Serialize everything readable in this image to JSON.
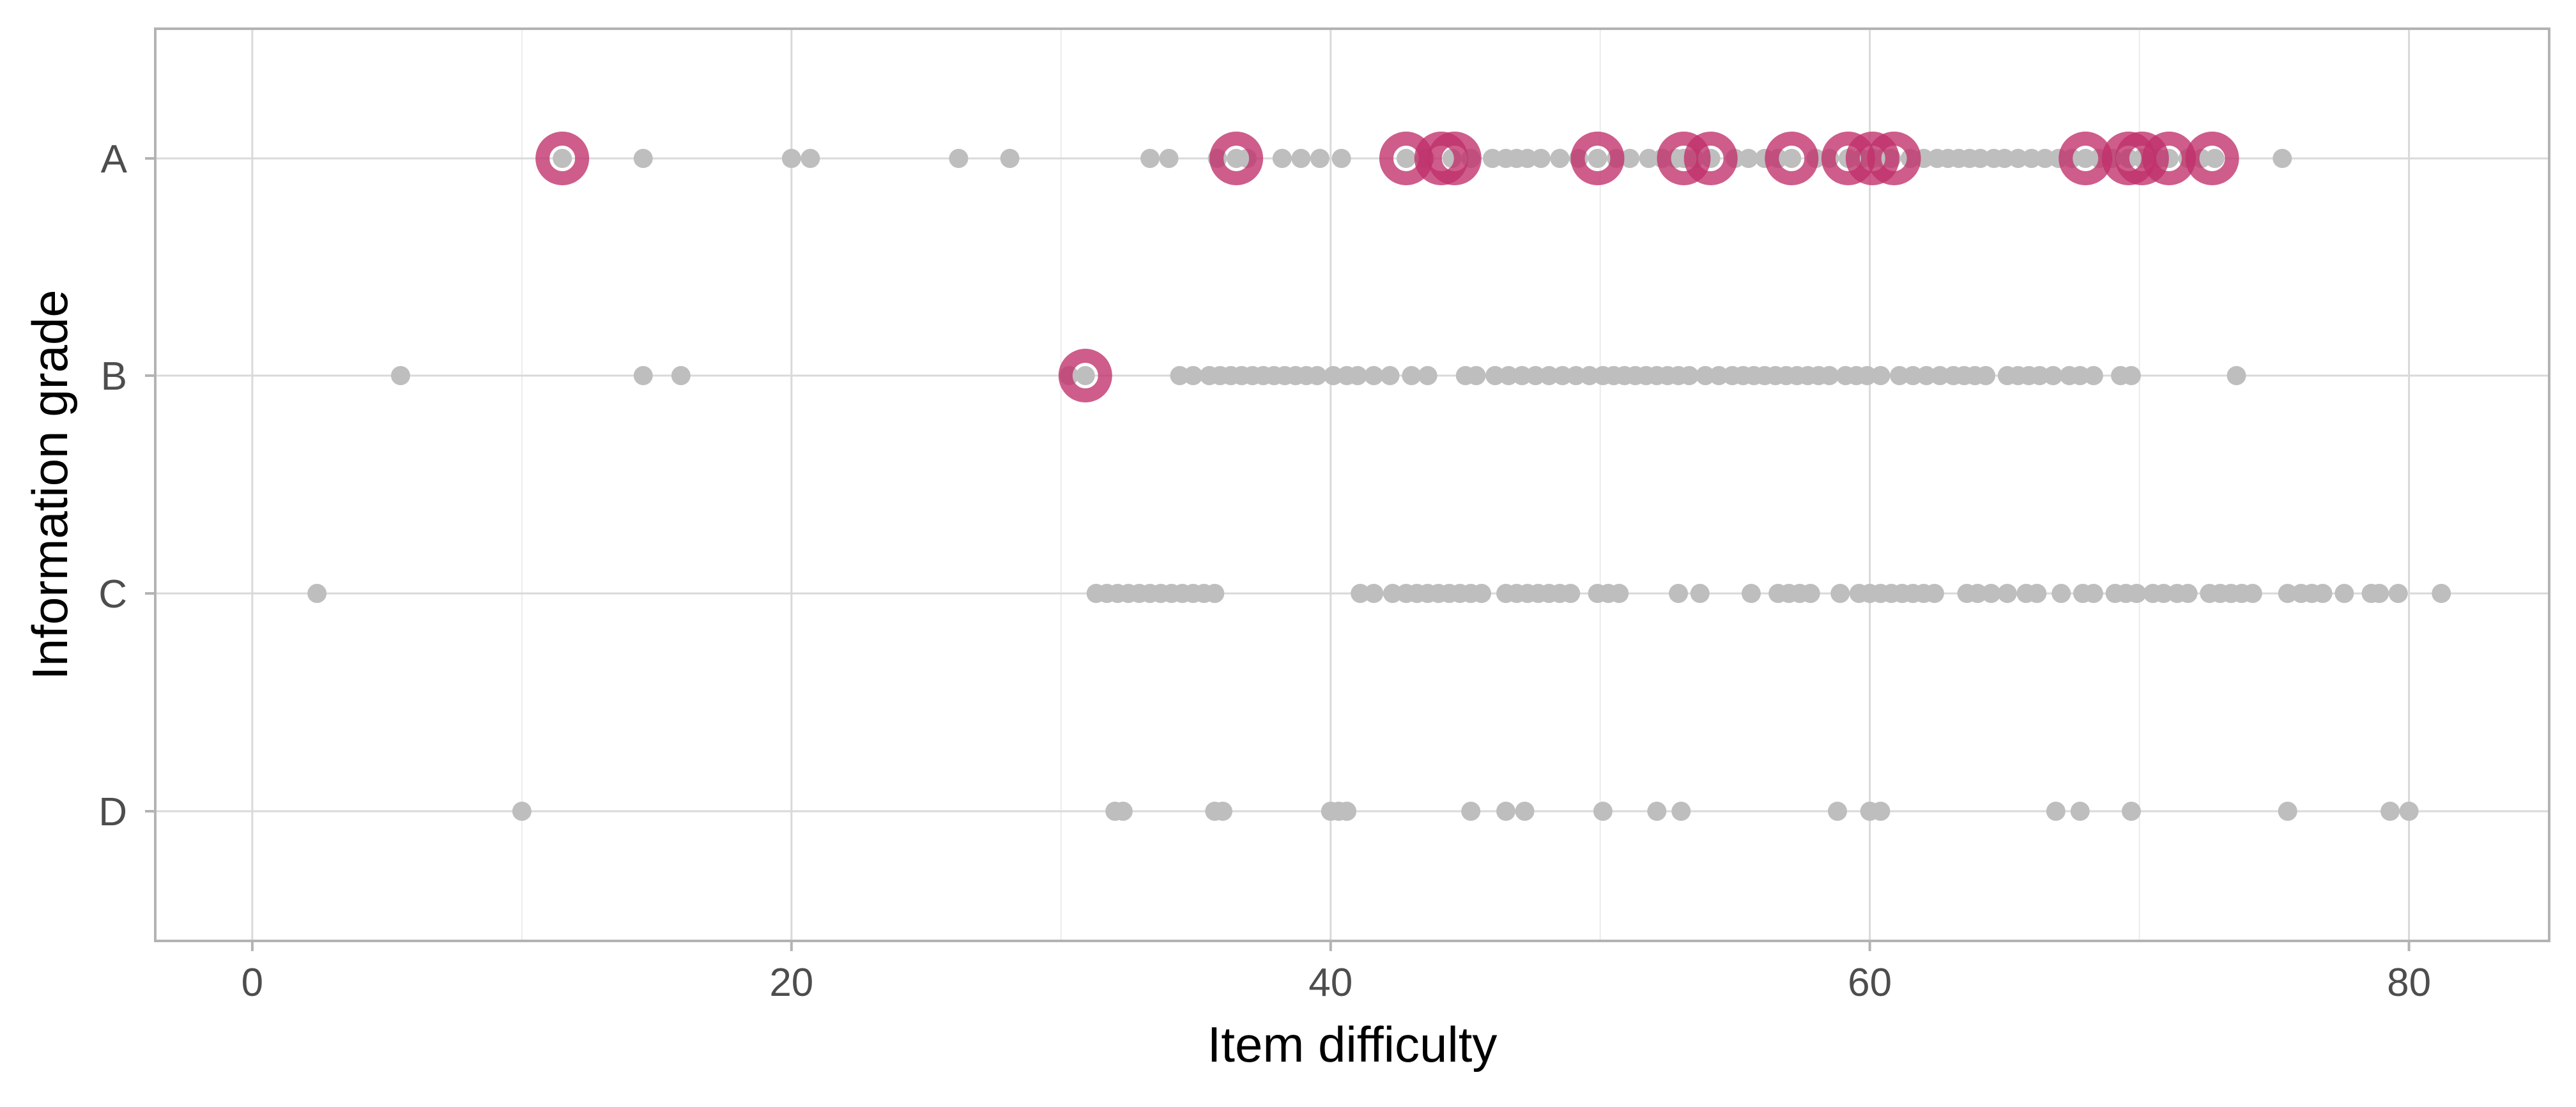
{
  "chart_data": {
    "type": "scatter",
    "title": "",
    "xlabel": "Item difficulty",
    "ylabel": "Information grade",
    "xlim": [
      -3.6,
      85.2
    ],
    "x_ticks": [
      0,
      20,
      40,
      60,
      80
    ],
    "categories": [
      "A",
      "B",
      "C",
      "D"
    ],
    "grid": true,
    "legend": "none",
    "colors": {
      "base_points": "#bebebe",
      "highlight_ring": "#c0306a",
      "grid_major": "#d9d9d9",
      "grid_minor": "#ebebeb",
      "panel_border": "#b3b3b3",
      "axis_text": "#4d4d4d",
      "title_text": "#000000"
    },
    "series": [
      {
        "category": "A",
        "x": [
          11.5,
          14.5,
          20,
          20.7,
          26.2,
          28.1,
          33.3,
          34,
          35.8,
          36.5,
          36.9,
          38.2,
          38.9,
          39.6,
          40.4,
          42.8,
          43.5,
          44.5,
          45.2,
          46,
          46.5,
          46.9,
          47.3,
          47.8,
          48.5,
          49.2,
          49.9,
          50.6,
          51.1,
          51.8,
          52.3,
          52.8,
          53.1,
          53.5,
          54.1,
          55,
          55.5,
          56.1,
          56.6,
          57.1,
          58,
          58.5,
          59.2,
          59.7,
          60.1,
          60.5,
          60.8,
          61.5,
          62,
          62.5,
          62.9,
          63.3,
          63.7,
          64.1,
          64.6,
          65,
          65.5,
          66,
          66.5,
          67,
          67.5,
          68,
          68.5,
          69,
          69.6,
          70.1,
          70.7,
          71.1,
          71.8,
          72.3,
          72.8,
          75.3
        ],
        "highlighted_x": [
          11.5,
          36.5,
          42.8,
          44.1,
          44.6,
          49.9,
          53.1,
          54.1,
          57.1,
          59.2,
          60.1,
          60.9,
          68,
          69.6,
          70.1,
          71.1,
          72.7
        ]
      },
      {
        "category": "B",
        "x": [
          5.5,
          14.5,
          15.9,
          30.3,
          30.9,
          34.4,
          34.9,
          35.5,
          35.9,
          36.3,
          36.7,
          37.1,
          37.5,
          37.9,
          38.3,
          38.7,
          39.1,
          39.5,
          40.1,
          40.6,
          41,
          41.6,
          42.2,
          43,
          43.6,
          45,
          45.4,
          46.1,
          46.6,
          47.1,
          47.6,
          48.1,
          48.6,
          49.1,
          49.6,
          50.1,
          50.5,
          50.9,
          51.3,
          51.7,
          52.1,
          52.5,
          52.9,
          53.3,
          53.9,
          54.4,
          54.9,
          55.3,
          55.7,
          56.1,
          56.5,
          56.9,
          57.3,
          57.7,
          58.1,
          58.5,
          59.1,
          59.5,
          59.9,
          60.4,
          61.1,
          61.6,
          62.1,
          62.6,
          63.1,
          63.5,
          63.9,
          64.3,
          65.1,
          65.5,
          65.9,
          66.3,
          66.8,
          67.4,
          67.8,
          68.3,
          69.3,
          69.7,
          73.6
        ],
        "highlighted_x": [
          30.9
        ]
      },
      {
        "category": "C",
        "x": [
          2.4,
          31.3,
          31.7,
          32.1,
          32.5,
          32.9,
          33.3,
          33.7,
          34.1,
          34.5,
          34.9,
          35.3,
          35.7,
          41.1,
          41.6,
          42.3,
          42.8,
          43.2,
          43.6,
          44,
          44.4,
          44.8,
          45.2,
          45.6,
          46.5,
          46.9,
          47.3,
          47.7,
          48.1,
          48.5,
          48.9,
          49.9,
          50.3,
          50.7,
          52.9,
          53.7,
          55.6,
          56.6,
          57,
          57.4,
          57.8,
          58.9,
          59.6,
          60,
          60.4,
          60.8,
          61.2,
          61.6,
          62,
          62.4,
          63.6,
          64,
          64.5,
          65.1,
          65.8,
          66.2,
          67.1,
          67.9,
          68.3,
          69.1,
          69.5,
          69.9,
          70.5,
          70.9,
          71.4,
          71.8,
          72.6,
          73,
          73.4,
          73.8,
          74.2,
          75.5,
          76,
          76.4,
          76.8,
          77.6,
          78.6,
          78.9,
          79.6,
          81.2
        ],
        "highlighted_x": []
      },
      {
        "category": "D",
        "x": [
          10,
          32,
          32.3,
          35.7,
          36,
          40,
          40.3,
          40.6,
          45.2,
          46.5,
          47.2,
          50.1,
          52.1,
          53,
          58.8,
          60,
          60.4,
          66.9,
          67.8,
          69.7,
          75.5,
          79.3,
          80
        ],
        "highlighted_x": []
      }
    ]
  }
}
